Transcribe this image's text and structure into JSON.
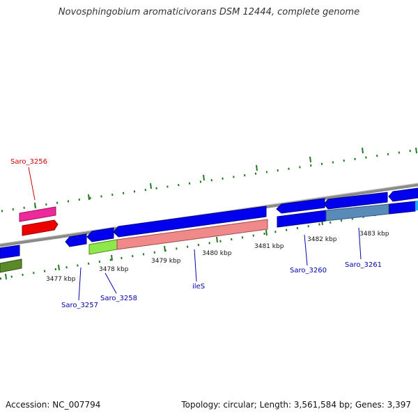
{
  "header": {
    "title": "Novosphingobium aromaticivorans DSM 12444, complete genome"
  },
  "footer": {
    "accession": "Accession: NC_007794",
    "stats": "Topology: circular; Length: 3,561,584 bp; Genes: 3,397"
  },
  "ticks": [
    {
      "label": "3477 kbp"
    },
    {
      "label": "3478 kbp"
    },
    {
      "label": "3479 kbp"
    },
    {
      "label": "3480 kbp"
    },
    {
      "label": "3481 kbp"
    },
    {
      "label": "3482 kbp"
    },
    {
      "label": "3483 kbp"
    }
  ],
  "gene_labels": [
    {
      "label": "Saro_3256",
      "color": "#cc0000"
    },
    {
      "label": "Saro_3257",
      "color": "#0000aa"
    },
    {
      "label": "Saro_3258",
      "color": "#0000aa"
    },
    {
      "label": "ileS",
      "color": "#0000aa"
    },
    {
      "label": "Saro_3260",
      "color": "#0000aa"
    },
    {
      "label": "Saro_3261",
      "color": "#0000aa"
    }
  ],
  "colors": {
    "backbone": "#8a8a8a",
    "cds": "#0000ee",
    "ruler": "#1e7a1e",
    "feature_pink": "#ee2a9a",
    "feature_red": "#ee0000",
    "feature_salmon": "#f08a8a",
    "feature_lime": "#8ee84a",
    "feature_olive": "#5a8a2a",
    "feature_steel": "#5a8ab8"
  }
}
